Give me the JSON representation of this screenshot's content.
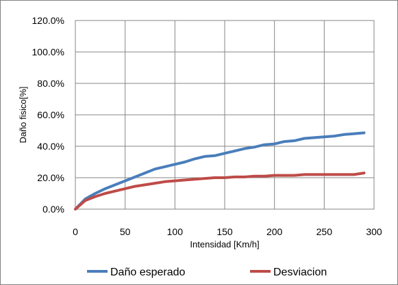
{
  "chart_data": {
    "type": "line",
    "title": "",
    "xlabel": "Intensidad [Km/h]",
    "ylabel": "Daño fisico[%]",
    "xlim": [
      0,
      300
    ],
    "ylim": [
      0,
      120
    ],
    "x_ticks": [
      0,
      50,
      100,
      150,
      200,
      250,
      300
    ],
    "y_ticks": [
      0,
      20,
      40,
      60,
      80,
      100,
      120
    ],
    "x_tick_labels": [
      "0",
      "50",
      "100",
      "150",
      "200",
      "250",
      "300"
    ],
    "y_tick_labels": [
      "0.0%",
      "20.0%",
      "40.0%",
      "60.0%",
      "80.0%",
      "100.0%",
      "120.0%"
    ],
    "grid": true,
    "legend_position": "bottom",
    "series": [
      {
        "name": "Daño esperado",
        "color": "#4a7ebb",
        "x": [
          0,
          10,
          20,
          30,
          40,
          50,
          60,
          70,
          80,
          90,
          100,
          110,
          120,
          130,
          140,
          150,
          160,
          170,
          180,
          190,
          200,
          210,
          220,
          230,
          240,
          250,
          260,
          270,
          280,
          290
        ],
        "values": [
          0,
          6.5,
          10,
          13,
          15.5,
          18,
          20.5,
          23,
          25.5,
          27,
          28.5,
          30,
          32,
          33.5,
          34,
          35.5,
          37,
          38.5,
          39.5,
          41,
          41.5,
          43,
          43.5,
          45,
          45.5,
          46,
          46.5,
          47.5,
          48,
          48.5
        ]
      },
      {
        "name": "Desviacion",
        "color": "#be4b48",
        "x": [
          0,
          10,
          20,
          30,
          40,
          50,
          60,
          70,
          80,
          90,
          100,
          110,
          120,
          130,
          140,
          150,
          160,
          170,
          180,
          190,
          200,
          210,
          220,
          230,
          240,
          250,
          260,
          270,
          280,
          290
        ],
        "values": [
          0,
          5.5,
          8,
          10,
          11.5,
          13,
          14.5,
          15.5,
          16.5,
          17.5,
          18,
          18.5,
          19,
          19.5,
          20,
          20,
          20.5,
          20.5,
          21,
          21,
          21.5,
          21.5,
          21.5,
          22,
          22,
          22,
          22,
          22,
          22,
          23
        ]
      }
    ]
  }
}
